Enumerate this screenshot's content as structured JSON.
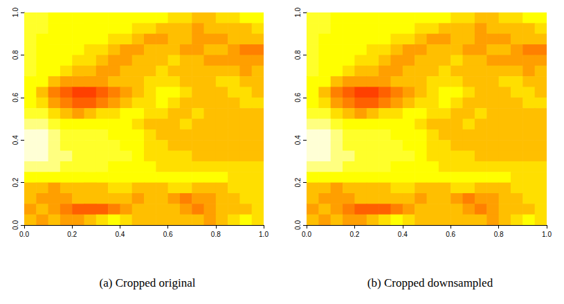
{
  "chart_data": [
    {
      "type": "heatmap",
      "title": "(a) Cropped original",
      "xlim": [
        0,
        1
      ],
      "ylim": [
        0,
        1
      ],
      "xticks": [
        {
          "value": 0,
          "label": "0.0"
        },
        {
          "value": 0.2,
          "label": "0.2"
        },
        {
          "value": 0.4,
          "label": "0.4"
        },
        {
          "value": 0.6,
          "label": "0.6"
        },
        {
          "value": 0.8,
          "label": "0.8"
        },
        {
          "value": 1,
          "label": "1.0"
        }
      ],
      "yticks": [
        {
          "value": 0,
          "label": "0.0"
        },
        {
          "value": 0.2,
          "label": "0.2"
        },
        {
          "value": 0.4,
          "label": "0.4"
        },
        {
          "value": 0.6,
          "label": "0.6"
        },
        {
          "value": 0.8,
          "label": "0.8"
        },
        {
          "value": 1,
          "label": "1.0"
        }
      ],
      "zlim": [
        0,
        11
      ],
      "cells": [
        [
          9,
          9,
          8,
          8,
          8,
          8,
          8,
          8,
          8,
          8,
          8,
          8,
          7,
          7,
          6,
          6,
          7,
          7,
          8,
          8
        ],
        [
          9,
          9,
          8,
          8,
          8,
          8,
          8,
          8,
          8,
          7,
          7,
          6,
          6,
          6,
          5,
          6,
          6,
          6,
          6,
          7
        ],
        [
          9,
          8,
          8,
          8,
          8,
          8,
          8,
          7,
          7,
          6,
          5,
          5,
          6,
          6,
          5,
          5,
          5,
          6,
          6,
          6
        ],
        [
          9,
          8,
          8,
          8,
          8,
          7,
          7,
          6,
          5,
          5,
          6,
          6,
          6,
          5,
          5,
          6,
          6,
          5,
          4,
          4
        ],
        [
          9,
          8,
          8,
          8,
          7,
          7,
          6,
          5,
          5,
          6,
          6,
          6,
          7,
          6,
          6,
          5,
          5,
          5,
          5,
          5
        ],
        [
          9,
          8,
          8,
          7,
          6,
          6,
          5,
          5,
          6,
          6,
          6,
          7,
          6,
          6,
          6,
          6,
          6,
          6,
          5,
          6
        ],
        [
          8,
          8,
          6,
          5,
          5,
          5,
          5,
          6,
          6,
          6,
          7,
          7,
          7,
          6,
          6,
          6,
          7,
          7,
          6,
          6
        ],
        [
          8,
          6,
          4,
          3,
          2,
          2,
          3,
          4,
          5,
          6,
          7,
          8,
          8,
          7,
          6,
          6,
          6,
          7,
          7,
          6
        ],
        [
          8,
          7,
          5,
          4,
          3,
          3,
          4,
          5,
          6,
          7,
          7,
          8,
          7,
          6,
          6,
          6,
          6,
          6,
          7,
          7
        ],
        [
          9,
          9,
          7,
          6,
          5,
          6,
          7,
          7,
          8,
          8,
          7,
          7,
          6,
          6,
          7,
          6,
          6,
          6,
          6,
          6
        ],
        [
          10,
          10,
          9,
          8,
          8,
          8,
          8,
          8,
          8,
          7,
          6,
          6,
          6,
          7,
          6,
          6,
          6,
          6,
          6,
          6
        ],
        [
          11,
          11,
          10,
          9,
          9,
          9,
          9,
          8,
          8,
          8,
          7,
          6,
          6,
          6,
          6,
          6,
          6,
          6,
          6,
          6
        ],
        [
          11,
          11,
          10,
          9,
          9,
          9,
          9,
          9,
          8,
          8,
          7,
          7,
          6,
          6,
          6,
          6,
          6,
          6,
          6,
          6
        ],
        [
          11,
          11,
          10,
          10,
          9,
          9,
          9,
          9,
          9,
          8,
          7,
          7,
          7,
          7,
          6,
          6,
          6,
          6,
          6,
          6
        ],
        [
          10,
          10,
          10,
          9,
          9,
          9,
          9,
          8,
          8,
          8,
          8,
          7,
          7,
          7,
          7,
          7,
          7,
          7,
          7,
          7
        ],
        [
          8,
          8,
          8,
          8,
          8,
          8,
          8,
          8,
          8,
          8,
          8,
          8,
          8,
          8,
          8,
          8,
          8,
          7,
          7,
          7
        ],
        [
          6,
          6,
          5,
          6,
          6,
          6,
          6,
          7,
          7,
          6,
          6,
          6,
          7,
          7,
          6,
          6,
          6,
          7,
          7,
          7
        ],
        [
          6,
          5,
          5,
          5,
          6,
          6,
          6,
          6,
          6,
          5,
          6,
          6,
          5,
          4,
          5,
          5,
          6,
          6,
          7,
          7
        ],
        [
          5,
          6,
          5,
          4,
          3,
          3,
          3,
          4,
          5,
          6,
          6,
          6,
          6,
          5,
          4,
          5,
          6,
          6,
          6,
          7
        ],
        [
          6,
          5,
          6,
          5,
          5,
          6,
          7,
          8,
          7,
          6,
          6,
          6,
          6,
          6,
          6,
          5,
          6,
          7,
          8,
          7
        ]
      ]
    },
    {
      "type": "heatmap",
      "title": "(b) Cropped downsampled",
      "xlim": [
        0,
        1
      ],
      "ylim": [
        0,
        1
      ],
      "xticks": [
        {
          "value": 0,
          "label": "0.0"
        },
        {
          "value": 0.2,
          "label": "0.2"
        },
        {
          "value": 0.4,
          "label": "0.4"
        },
        {
          "value": 0.6,
          "label": "0.6"
        },
        {
          "value": 0.8,
          "label": "0.8"
        },
        {
          "value": 1,
          "label": "1.0"
        }
      ],
      "yticks": [
        {
          "value": 0,
          "label": "0.0"
        },
        {
          "value": 0.2,
          "label": "0.2"
        },
        {
          "value": 0.4,
          "label": "0.4"
        },
        {
          "value": 0.6,
          "label": "0.6"
        },
        {
          "value": 0.8,
          "label": "0.8"
        },
        {
          "value": 1,
          "label": "1.0"
        }
      ],
      "zlim": [
        0,
        11
      ],
      "cells": [
        [
          9,
          9,
          8,
          8,
          8,
          8,
          8,
          8,
          8,
          8,
          8,
          8,
          7,
          7,
          6,
          6,
          7,
          7,
          8,
          8
        ],
        [
          9,
          9,
          8,
          8,
          8,
          8,
          8,
          8,
          8,
          7,
          7,
          6,
          6,
          6,
          5,
          6,
          6,
          6,
          6,
          7
        ],
        [
          9,
          8,
          8,
          8,
          8,
          8,
          8,
          7,
          7,
          6,
          5,
          5,
          6,
          6,
          5,
          5,
          5,
          6,
          6,
          6
        ],
        [
          9,
          8,
          8,
          8,
          8,
          7,
          7,
          6,
          5,
          5,
          6,
          6,
          6,
          5,
          5,
          6,
          6,
          5,
          4,
          4
        ],
        [
          9,
          8,
          8,
          8,
          7,
          7,
          6,
          5,
          5,
          6,
          6,
          6,
          7,
          6,
          6,
          5,
          5,
          5,
          5,
          5
        ],
        [
          9,
          8,
          8,
          7,
          6,
          6,
          5,
          5,
          6,
          6,
          6,
          7,
          6,
          6,
          6,
          6,
          6,
          6,
          5,
          6
        ],
        [
          8,
          8,
          6,
          5,
          5,
          5,
          5,
          6,
          6,
          6,
          7,
          7,
          7,
          6,
          6,
          6,
          7,
          7,
          6,
          6
        ],
        [
          8,
          6,
          4,
          3,
          2,
          2,
          3,
          4,
          5,
          6,
          7,
          8,
          8,
          7,
          6,
          6,
          6,
          7,
          7,
          6
        ],
        [
          8,
          7,
          5,
          4,
          3,
          3,
          4,
          5,
          6,
          7,
          7,
          8,
          7,
          6,
          6,
          6,
          6,
          6,
          7,
          7
        ],
        [
          9,
          9,
          7,
          6,
          5,
          6,
          7,
          7,
          8,
          8,
          7,
          7,
          6,
          6,
          7,
          6,
          6,
          6,
          6,
          6
        ],
        [
          10,
          10,
          9,
          8,
          8,
          8,
          8,
          8,
          8,
          7,
          6,
          6,
          6,
          7,
          6,
          6,
          6,
          6,
          6,
          6
        ],
        [
          11,
          11,
          10,
          9,
          9,
          9,
          9,
          8,
          8,
          8,
          7,
          6,
          6,
          6,
          6,
          6,
          6,
          6,
          6,
          6
        ],
        [
          11,
          11,
          10,
          9,
          9,
          9,
          9,
          9,
          8,
          8,
          7,
          7,
          6,
          6,
          6,
          6,
          6,
          6,
          6,
          6
        ],
        [
          11,
          11,
          10,
          10,
          9,
          9,
          9,
          9,
          9,
          8,
          7,
          7,
          7,
          7,
          6,
          6,
          6,
          6,
          6,
          6
        ],
        [
          10,
          10,
          10,
          9,
          9,
          9,
          9,
          8,
          8,
          8,
          8,
          7,
          7,
          7,
          7,
          7,
          7,
          7,
          7,
          7
        ],
        [
          8,
          8,
          8,
          8,
          8,
          8,
          8,
          8,
          8,
          8,
          8,
          8,
          8,
          8,
          8,
          8,
          8,
          7,
          7,
          7
        ],
        [
          6,
          6,
          5,
          6,
          6,
          6,
          6,
          7,
          7,
          6,
          6,
          6,
          7,
          7,
          6,
          6,
          6,
          7,
          7,
          7
        ],
        [
          6,
          5,
          5,
          5,
          6,
          6,
          6,
          6,
          6,
          5,
          6,
          6,
          5,
          4,
          5,
          5,
          6,
          6,
          7,
          7
        ],
        [
          5,
          6,
          5,
          4,
          3,
          3,
          3,
          4,
          5,
          6,
          6,
          6,
          6,
          5,
          4,
          5,
          6,
          6,
          6,
          7
        ],
        [
          6,
          5,
          6,
          5,
          5,
          6,
          7,
          8,
          7,
          6,
          6,
          6,
          6,
          6,
          6,
          5,
          6,
          7,
          8,
          7
        ]
      ]
    }
  ]
}
